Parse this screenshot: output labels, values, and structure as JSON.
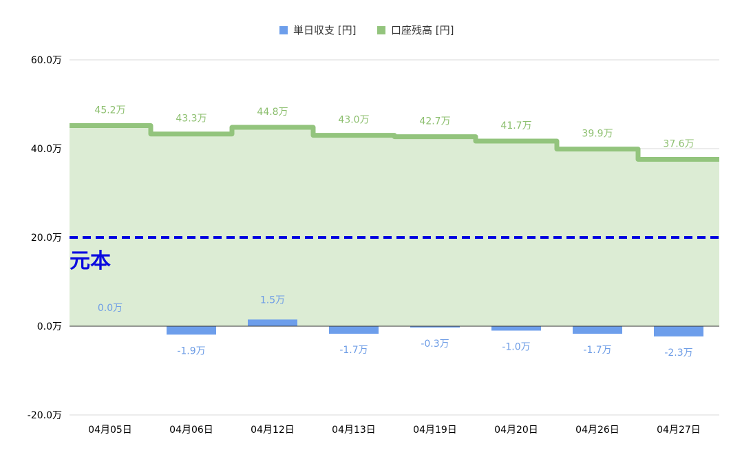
{
  "chart_data": {
    "type": "bar",
    "categories": [
      "04月05日",
      "04月06日",
      "04月12日",
      "04月13日",
      "04月19日",
      "04月20日",
      "04月26日",
      "04月27日"
    ],
    "series": [
      {
        "name": "単日収支 [円]",
        "chart_kind": "bar",
        "color": "#6d9eeb",
        "values": [
          0,
          -19000,
          15000,
          -17000,
          -3000,
          -10000,
          -17000,
          -23000
        ],
        "labels": [
          "0.0万",
          "-1.9万",
          "1.5万",
          "-1.7万",
          "-0.3万",
          "-1.0万",
          "-1.7万",
          "-2.3万"
        ]
      },
      {
        "name": "口座残高 [円]",
        "chart_kind": "stepped-area",
        "color": "#93c47d",
        "fill_color": "#dcecd4",
        "values": [
          452000,
          433000,
          448000,
          430000,
          427000,
          417000,
          399000,
          376000
        ],
        "labels": [
          "45.2万",
          "43.3万",
          "44.8万",
          "43.0万",
          "42.7万",
          "41.7万",
          "39.9万",
          "37.6万"
        ]
      }
    ],
    "reference_line": {
      "value": 200000,
      "label": "元本",
      "color": "#0000e0",
      "style": "dashed"
    },
    "ylim": [
      -200000,
      600000
    ],
    "yticks": [
      {
        "value": 600000,
        "label": "60.0万"
      },
      {
        "value": 400000,
        "label": "40.0万"
      },
      {
        "value": 200000,
        "label": "20.0万"
      },
      {
        "value": 0,
        "label": "0.0万"
      },
      {
        "value": -200000,
        "label": "-20.0万"
      }
    ],
    "grid": true,
    "legend_position": "top-center",
    "title": "",
    "xlabel": "",
    "ylabel": ""
  }
}
